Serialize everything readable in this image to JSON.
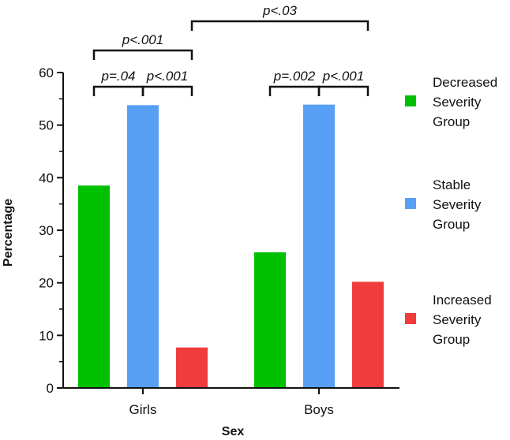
{
  "chart_data": {
    "type": "bar",
    "title": "",
    "xlabel": "Sex",
    "ylabel": "Percentage",
    "ylim": [
      0,
      60
    ],
    "yticks": [
      "0",
      "10",
      "20",
      "30",
      "40",
      "50",
      "60"
    ],
    "categories": [
      "Girls",
      "Boys"
    ],
    "series": [
      {
        "name": "Decreased Severity Group",
        "legend_lines": [
          "Decreased",
          "Severity",
          "Group"
        ],
        "color": "#00c000",
        "values": [
          38.5,
          25.8
        ]
      },
      {
        "name": "Stable Severity Group",
        "legend_lines": [
          "Stable",
          "Severity",
          "Group"
        ],
        "color": "#58a0f5",
        "values": [
          53.8,
          53.9
        ]
      },
      {
        "name": "Increased Severity Group",
        "legend_lines": [
          "Increased",
          "Severity",
          "Group"
        ],
        "color": "#f03c3c",
        "values": [
          7.7,
          20.2
        ]
      }
    ],
    "legend": "right",
    "grid": false,
    "significance": [
      {
        "label": "p=.04",
        "from": {
          "category": 0,
          "series": 0
        },
        "to": {
          "category": 0,
          "series": 1
        }
      },
      {
        "label": "p<.001",
        "from": {
          "category": 0,
          "series": 1
        },
        "to": {
          "category": 0,
          "series": 2
        }
      },
      {
        "label": "p=.002",
        "from": {
          "category": 1,
          "series": 0
        },
        "to": {
          "category": 1,
          "series": 1
        }
      },
      {
        "label": "p<.001",
        "from": {
          "category": 1,
          "series": 1
        },
        "to": {
          "category": 1,
          "series": 2
        }
      },
      {
        "label": "p<.001",
        "from": {
          "category": 0,
          "series": 0
        },
        "to": {
          "category": 0,
          "series": 2
        }
      },
      {
        "label": "p<.03",
        "from": {
          "category": 0,
          "series": 2
        },
        "to": {
          "category": 1,
          "series": 2
        }
      }
    ]
  }
}
